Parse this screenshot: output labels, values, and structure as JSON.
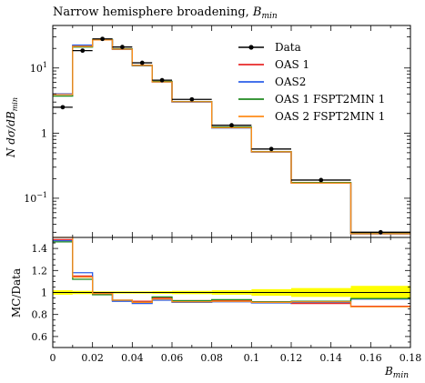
{
  "chart_data": {
    "type": "line",
    "title": "Narrow hemisphere broadening, B_min",
    "title_parts": {
      "text": "Narrow hemisphere broadening, ",
      "symbol": "B",
      "subscript": "min"
    },
    "xlabel": "B_min",
    "xlabel_parts": {
      "symbol": "B",
      "subscript": "min"
    },
    "ylabel": "N dσ/dB_min",
    "ylabel_parts": {
      "prefix": "N dσ/dB",
      "subscript": "min"
    },
    "ratio_ylabel": "MC/Data",
    "x_bins": [
      0,
      0.01,
      0.02,
      0.03,
      0.04,
      0.05,
      0.06,
      0.08,
      0.1,
      0.12,
      0.15,
      0.18
    ],
    "xlim": [
      0,
      0.18
    ],
    "ylim": [
      0.025,
      45
    ],
    "yscale": "log",
    "ratio_ylim": [
      0.5,
      1.5
    ],
    "x_ticks": [
      "0",
      "0.02",
      "0.04",
      "0.06",
      "0.08",
      "0.1",
      "0.12",
      "0.14",
      "0.16",
      "0.18"
    ],
    "y_ticks": [
      {
        "value": 10,
        "mantissa": "10",
        "exp": "1"
      },
      {
        "value": 1,
        "mantissa": "1",
        "exp": ""
      },
      {
        "value": 0.1,
        "mantissa": "10",
        "exp": "−1"
      }
    ],
    "ratio_ticks": [
      "0.6",
      "0.8",
      "1",
      "1.2",
      "1.4"
    ],
    "legend_position": "top-right",
    "data": {
      "name": "Data",
      "x": [
        0.005,
        0.015,
        0.025,
        0.035,
        0.045,
        0.055,
        0.07,
        0.09,
        0.11,
        0.135,
        0.165
      ],
      "y": [
        2.5,
        18.5,
        28.0,
        21.0,
        12.0,
        6.5,
        3.3,
        1.32,
        0.57,
        0.19,
        0.03
      ]
    },
    "series": [
      {
        "name": "OAS 1",
        "color": "#e8292a",
        "values": [
          4.0,
          22.0,
          27.0,
          19.5,
          11.0,
          6.2,
          3.05,
          1.22,
          0.52,
          0.172,
          0.0285
        ],
        "ratio": [
          1.48,
          1.15,
          0.99,
          0.93,
          0.92,
          0.95,
          0.925,
          0.925,
          0.915,
          0.9,
          0.875
        ]
      },
      {
        "name": "OAS2",
        "color": "#2b5fe8",
        "values": [
          4.0,
          22.5,
          27.3,
          19.3,
          10.8,
          6.1,
          3.0,
          1.2,
          0.51,
          0.173,
          0.0283
        ],
        "ratio": [
          1.47,
          1.18,
          0.99,
          0.92,
          0.9,
          0.93,
          0.91,
          0.915,
          0.905,
          0.91,
          0.94
        ]
      },
      {
        "name": "OAS 1 FSPT2MIN 1",
        "color": "#1f8a1f",
        "values": [
          3.7,
          21.0,
          27.5,
          19.6,
          10.9,
          6.25,
          3.05,
          1.24,
          0.52,
          0.174,
          0.0286
        ],
        "ratio": [
          1.46,
          1.12,
          0.98,
          0.93,
          0.91,
          0.96,
          0.925,
          0.935,
          0.915,
          0.92,
          0.945
        ]
      },
      {
        "name": "OAS 2 FSPT2MIN 1",
        "color": "#ff8c1a",
        "values": [
          3.9,
          21.5,
          27.0,
          19.4,
          11.0,
          6.1,
          3.03,
          1.21,
          0.515,
          0.171,
          0.0284
        ],
        "ratio": [
          1.5,
          1.14,
          0.99,
          0.93,
          0.91,
          0.94,
          0.915,
          0.92,
          0.91,
          0.915,
          0.87
        ]
      }
    ],
    "data_uncertainty_band": {
      "color": "#ffff00",
      "half_width": [
        0.02,
        0.015,
        0.01,
        0.01,
        0.01,
        0.012,
        0.015,
        0.02,
        0.03,
        0.04,
        0.06
      ]
    },
    "colors": {
      "data": "#000000",
      "band": "#ffff00"
    }
  }
}
